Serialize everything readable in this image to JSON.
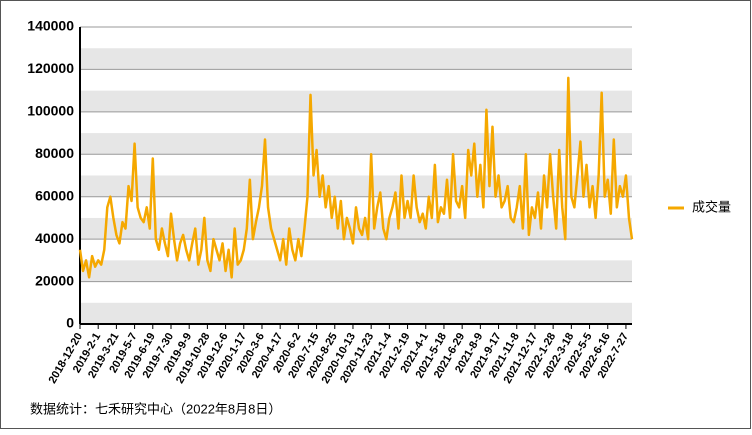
{
  "chart_data": {
    "type": "line",
    "categories": [
      "2018-12-20",
      null,
      null,
      null,
      null,
      null,
      "2019-2-1",
      null,
      null,
      null,
      null,
      null,
      "2019-3-21",
      null,
      null,
      null,
      null,
      null,
      "2019-5-7",
      null,
      null,
      null,
      null,
      null,
      "2019-6-19",
      null,
      null,
      null,
      null,
      null,
      "2019-7-30",
      null,
      null,
      null,
      null,
      null,
      "2019-9-9",
      null,
      null,
      null,
      null,
      null,
      "2019-10-28",
      null,
      null,
      null,
      null,
      null,
      "2019-12-6",
      null,
      null,
      null,
      null,
      null,
      "2020-1-17",
      null,
      null,
      null,
      null,
      null,
      "2020-3-6",
      null,
      null,
      null,
      null,
      null,
      "2020-4-17",
      null,
      null,
      null,
      null,
      null,
      "2020-6-2",
      null,
      null,
      null,
      null,
      null,
      "2020-7-15",
      null,
      null,
      null,
      null,
      null,
      "2020-8-25",
      null,
      null,
      null,
      null,
      null,
      "2020-10-13",
      null,
      null,
      null,
      null,
      null,
      "2020-11-23",
      null,
      null,
      null,
      null,
      null,
      "2021-1-4",
      null,
      null,
      null,
      null,
      null,
      "2021-2-19",
      null,
      null,
      null,
      null,
      null,
      "2021-4-1",
      null,
      null,
      null,
      null,
      null,
      "2021-5-18",
      null,
      null,
      null,
      null,
      null,
      "2021-6-29",
      null,
      null,
      null,
      null,
      null,
      "2021-8-9",
      null,
      null,
      null,
      null,
      null,
      "2021-9-17",
      null,
      null,
      null,
      null,
      null,
      "2021-11-8",
      null,
      null,
      null,
      null,
      null,
      "2021-12-17",
      null,
      null,
      null,
      null,
      null,
      "2022-1-28",
      null,
      null,
      null,
      null,
      null,
      "2022-3-18",
      null,
      null,
      null,
      null,
      null,
      "2022-5-5",
      null,
      null,
      null,
      null,
      null,
      "2022-6-16",
      null,
      null,
      null,
      null,
      null,
      "2022-7-27",
      null,
      null
    ],
    "series": [
      {
        "name": "成交量",
        "color": "#f5a800",
        "values": [
          35000,
          25000,
          30000,
          22000,
          32000,
          27000,
          30000,
          28000,
          35000,
          55000,
          60000,
          50000,
          42000,
          38000,
          48000,
          45000,
          65000,
          58000,
          85000,
          55000,
          50000,
          48000,
          55000,
          45000,
          78000,
          40000,
          35000,
          45000,
          38000,
          32000,
          52000,
          40000,
          30000,
          38000,
          42000,
          35000,
          30000,
          38000,
          45000,
          28000,
          35000,
          50000,
          30000,
          25000,
          40000,
          35000,
          30000,
          38000,
          25000,
          35000,
          22000,
          45000,
          28000,
          30000,
          35000,
          45000,
          68000,
          40000,
          48000,
          55000,
          65000,
          87000,
          55000,
          45000,
          40000,
          35000,
          30000,
          40000,
          28000,
          45000,
          35000,
          30000,
          40000,
          32000,
          45000,
          60000,
          108000,
          70000,
          82000,
          60000,
          70000,
          55000,
          65000,
          50000,
          60000,
          45000,
          58000,
          40000,
          50000,
          45000,
          38000,
          55000,
          45000,
          42000,
          50000,
          40000,
          80000,
          45000,
          55000,
          62000,
          45000,
          40000,
          50000,
          55000,
          62000,
          45000,
          70000,
          50000,
          58000,
          50000,
          70000,
          55000,
          48000,
          52000,
          45000,
          60000,
          50000,
          75000,
          48000,
          55000,
          52000,
          68000,
          50000,
          80000,
          58000,
          55000,
          65000,
          50000,
          82000,
          70000,
          85000,
          60000,
          75000,
          55000,
          101000,
          65000,
          93000,
          60000,
          70000,
          55000,
          58000,
          65000,
          50000,
          48000,
          55000,
          65000,
          45000,
          80000,
          42000,
          55000,
          50000,
          62000,
          45000,
          70000,
          55000,
          80000,
          60000,
          45000,
          82000,
          55000,
          40000,
          116000,
          60000,
          55000,
          70000,
          86000,
          60000,
          75000,
          55000,
          65000,
          50000,
          70000,
          109000,
          60000,
          68000,
          52000,
          87000,
          55000,
          65000,
          60000,
          70000,
          50000,
          40000
        ]
      }
    ],
    "ylim": [
      0,
      140000
    ],
    "yticks": [
      0,
      20000,
      40000,
      60000,
      80000,
      100000,
      120000,
      140000
    ],
    "grid": true,
    "legend": "right",
    "source": "数据统计：七禾研究中心（2022年8月8日）"
  }
}
